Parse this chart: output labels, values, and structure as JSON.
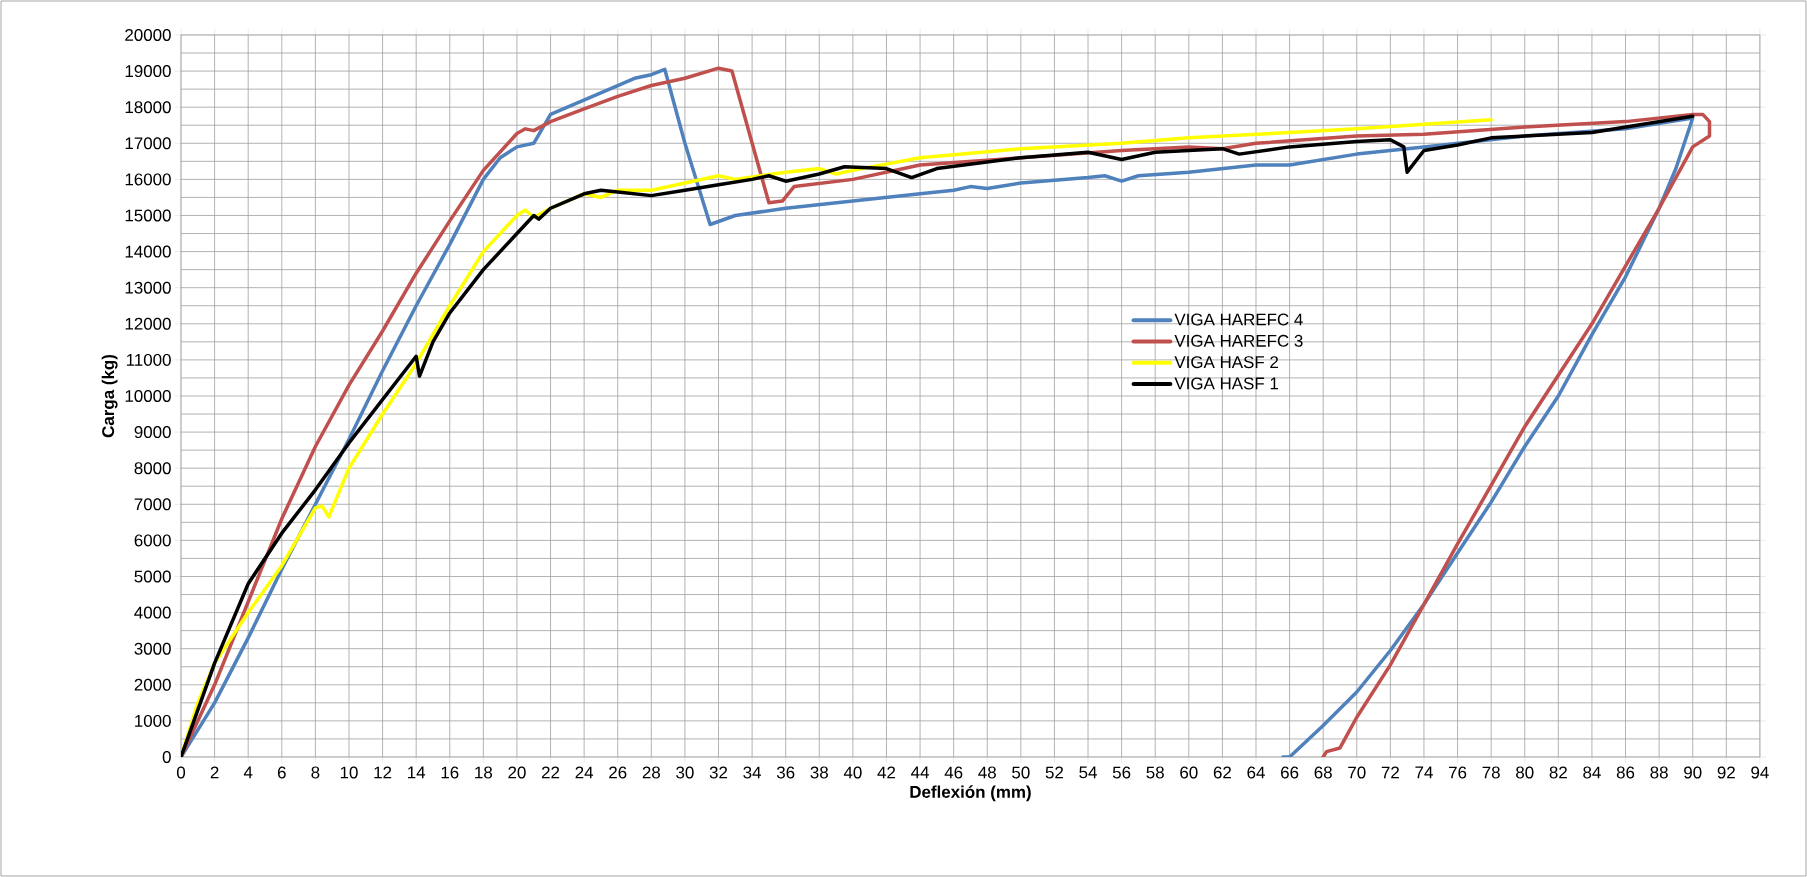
{
  "chart_data": {
    "type": "line",
    "xlabel": "Deflexión (mm)",
    "ylabel": "Carga (kg)",
    "xlim": [
      0,
      94
    ],
    "xticks": [
      0,
      2,
      4,
      6,
      8,
      10,
      12,
      14,
      16,
      18,
      20,
      22,
      24,
      26,
      28,
      30,
      32,
      34,
      36,
      38,
      40,
      42,
      44,
      46,
      48,
      50,
      52,
      54,
      56,
      58,
      60,
      62,
      64,
      66,
      68,
      70,
      72,
      74,
      76,
      78,
      80,
      82,
      84,
      86,
      88,
      90,
      92,
      94
    ],
    "ylim": [
      0,
      20000
    ],
    "yticks": [
      0,
      1000,
      2000,
      3000,
      4000,
      5000,
      6000,
      7000,
      8000,
      9000,
      10000,
      11000,
      12000,
      13000,
      14000,
      15000,
      16000,
      17000,
      18000,
      19000,
      20000
    ],
    "grid": true,
    "legend": "center right",
    "marker": "none",
    "line_style": "solid",
    "series": [
      {
        "name": "VIGA HAREFC 4",
        "color": "#4f81bd",
        "x": [
          0,
          2,
          4,
          6,
          8,
          10,
          12,
          14,
          16,
          18,
          19,
          20,
          21,
          22,
          24,
          26,
          27,
          28,
          28.8,
          30,
          31.5,
          33,
          36,
          40,
          44,
          46,
          47,
          48,
          50,
          54,
          55,
          56,
          57,
          60,
          64,
          66,
          70,
          74,
          80,
          86,
          90,
          89,
          88,
          86,
          84,
          82,
          80,
          78,
          76,
          74,
          72,
          70,
          68,
          66,
          65.6
        ],
        "values": [
          0,
          1500,
          3300,
          5200,
          7000,
          8800,
          10700,
          12500,
          14200,
          16000,
          16600,
          16900,
          17000,
          17800,
          18200,
          18600,
          18800,
          18900,
          19050,
          17000,
          14750,
          15000,
          15200,
          15400,
          15600,
          15700,
          15800,
          15750,
          15900,
          16050,
          16100,
          15950,
          16100,
          16200,
          16400,
          16400,
          16700,
          16900,
          17200,
          17400,
          17700,
          16300,
          15200,
          13300,
          11700,
          10000,
          8600,
          7060,
          5650,
          4230,
          2950,
          1800,
          870,
          0,
          0
        ]
      },
      {
        "name": "VIGA HAREFC 3",
        "color": "#c0504d",
        "x": [
          0,
          2,
          4,
          6,
          8,
          10,
          12,
          14,
          16,
          18,
          20,
          20.5,
          21,
          22,
          24,
          26,
          28,
          30,
          32,
          32.8,
          35,
          35.8,
          36.5,
          40,
          44,
          50,
          56,
          60,
          62,
          64,
          70,
          74,
          80,
          86,
          90,
          90.6,
          91,
          91,
          90,
          88,
          84,
          80,
          76,
          72,
          70,
          69,
          68.2,
          68
        ],
        "values": [
          0,
          2000,
          4300,
          6600,
          8600,
          10300,
          11800,
          13400,
          14850,
          16250,
          17270,
          17400,
          17350,
          17600,
          17950,
          18300,
          18600,
          18800,
          19080,
          19000,
          15350,
          15400,
          15800,
          16000,
          16400,
          16600,
          16800,
          16900,
          16850,
          17000,
          17200,
          17250,
          17450,
          17600,
          17800,
          17800,
          17600,
          17200,
          16900,
          15200,
          12000,
          9150,
          5900,
          2550,
          1100,
          250,
          150,
          0
        ]
      },
      {
        "name": "VIGA HASF 2",
        "color": "#ffff00",
        "x": [
          0,
          1,
          2,
          4,
          6,
          8,
          8.4,
          8.8,
          10,
          12,
          14,
          16,
          18,
          20,
          20.5,
          21,
          22,
          24,
          25,
          26,
          28,
          30,
          32,
          33,
          36,
          38,
          39,
          40,
          44,
          50,
          56,
          60,
          66,
          70,
          78
        ],
        "values": [
          0,
          1500,
          2600,
          4000,
          5300,
          6900,
          6950,
          6650,
          8000,
          9500,
          10900,
          12500,
          14000,
          15000,
          15150,
          14950,
          15200,
          15600,
          15500,
          15700,
          15700,
          15900,
          16100,
          16000,
          16200,
          16300,
          16150,
          16250,
          16600,
          16850,
          17000,
          17150,
          17300,
          17400,
          17650
        ]
      },
      {
        "name": "VIGA HASF 1",
        "color": "#000000",
        "x": [
          0,
          2,
          4,
          6,
          8,
          10,
          12,
          14,
          14.2,
          15,
          16,
          18,
          20,
          21,
          21.3,
          22,
          24,
          25,
          26,
          28,
          30,
          32,
          34,
          35,
          36,
          38,
          39.5,
          42,
          43.5,
          45,
          50,
          54,
          56,
          58,
          62,
          63,
          66,
          70,
          72,
          72.8,
          73,
          74,
          76,
          78,
          84,
          90
        ],
        "values": [
          0,
          2600,
          4800,
          6200,
          7400,
          8700,
          9900,
          11100,
          10550,
          11500,
          12300,
          13500,
          14500,
          15000,
          14900,
          15200,
          15600,
          15700,
          15650,
          15550,
          15700,
          15850,
          16000,
          16100,
          15950,
          16150,
          16350,
          16300,
          16050,
          16300,
          16600,
          16750,
          16550,
          16750,
          16850,
          16700,
          16900,
          17050,
          17100,
          16900,
          16200,
          16800,
          16950,
          17150,
          17300,
          17750
        ]
      }
    ]
  }
}
